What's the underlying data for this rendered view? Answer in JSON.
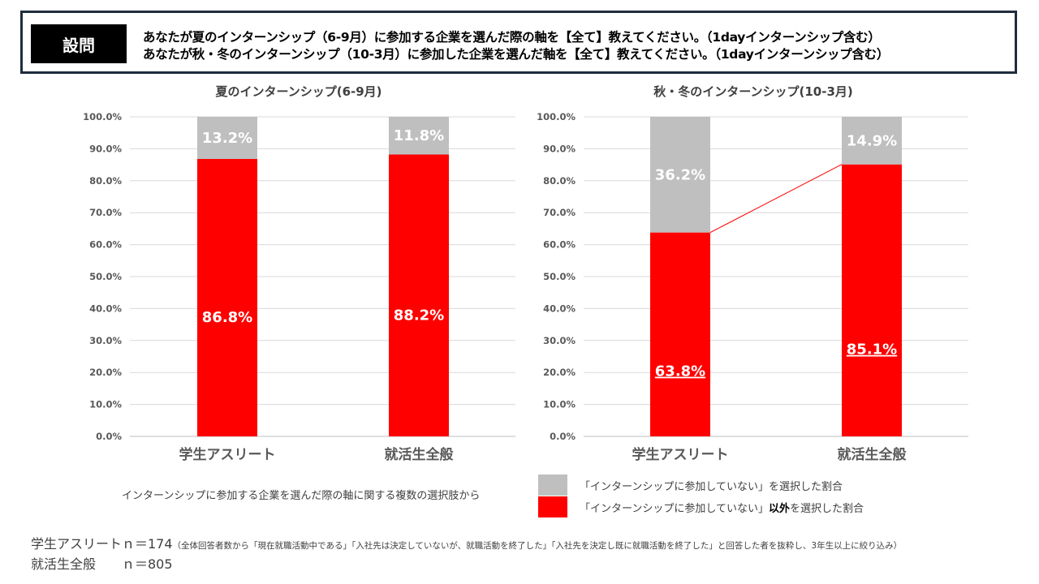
{
  "header": {
    "badge": "設問",
    "question_1": "あなたが夏のインターンシップ（6-9月）に参加する企業を選んだ際の軸を【全て】教えてください。（1dayインターンシップ含む）",
    "question_2": "あなたが秋・冬のインターンシップ（10-3月）に参加した企業を選んだ軸を【全て】教えてください。（1dayインターンシップ含む）"
  },
  "colors": {
    "gray": "#bfbfbf",
    "red": "#ff0000",
    "grid": "#d9d9d9",
    "header_border": "#1f2d3d"
  },
  "chart_data": [
    {
      "type": "bar",
      "stacked": true,
      "title": "夏のインターンシップ(6-9月)",
      "categories": [
        "学生アスリート",
        "就活生全般"
      ],
      "series": [
        {
          "name": "「インターンシップに参加していない」以外を選択した割合",
          "values": [
            86.8,
            88.2
          ],
          "labels": [
            "86.8%",
            "88.2%"
          ]
        },
        {
          "name": "「インターンシップに参加していない」を選択した割合",
          "values": [
            13.2,
            11.8
          ],
          "labels": [
            "13.2%",
            "11.8%"
          ]
        }
      ],
      "ylim": [
        0,
        100
      ],
      "yticks": [
        "0.0%",
        "10.0%",
        "20.0%",
        "30.0%",
        "40.0%",
        "50.0%",
        "60.0%",
        "70.0%",
        "80.0%",
        "90.0%",
        "100.0%"
      ],
      "grid": true
    },
    {
      "type": "bar",
      "stacked": true,
      "title": "秋・冬のインターンシップ(10-3月)",
      "categories": [
        "学生アスリート",
        "就活生全般"
      ],
      "series": [
        {
          "name": "「インターンシップに参加していない」以外を選択した割合",
          "values": [
            63.8,
            85.1
          ],
          "labels": [
            "63.8%",
            "85.1%"
          ],
          "underlined": true
        },
        {
          "name": "「インターンシップに参加していない」を選択した割合",
          "values": [
            36.2,
            14.9
          ],
          "labels": [
            "36.2%",
            "14.9%"
          ]
        }
      ],
      "ylim": [
        0,
        100
      ],
      "yticks": [
        "0.0%",
        "10.0%",
        "20.0%",
        "30.0%",
        "40.0%",
        "50.0%",
        "60.0%",
        "70.0%",
        "80.0%",
        "90.0%",
        "100.0%"
      ],
      "grid": true,
      "connector_line": true
    }
  ],
  "legend": {
    "note": "インターンシップに参加する企業を選んだ際の軸に関する複数の選択肢から",
    "gray_label": "「インターンシップに参加していない」を選択した割合",
    "red_label_prefix": "「インターンシップに参加していない」",
    "red_label_strong": "以外",
    "red_label_suffix": "を選択した割合"
  },
  "footer": {
    "line1_main": "学生アスリートｎ＝174",
    "line1_note": "（全体回答者数から「現在就職活動中である」「入社先は決定していないが、就職活動を終了した」「入社先を決定し既に就職活動を終了した」と回答した者を抜粋し、3年生以上に絞り込み）",
    "line2": "就活生全般　　ｎ＝805"
  }
}
